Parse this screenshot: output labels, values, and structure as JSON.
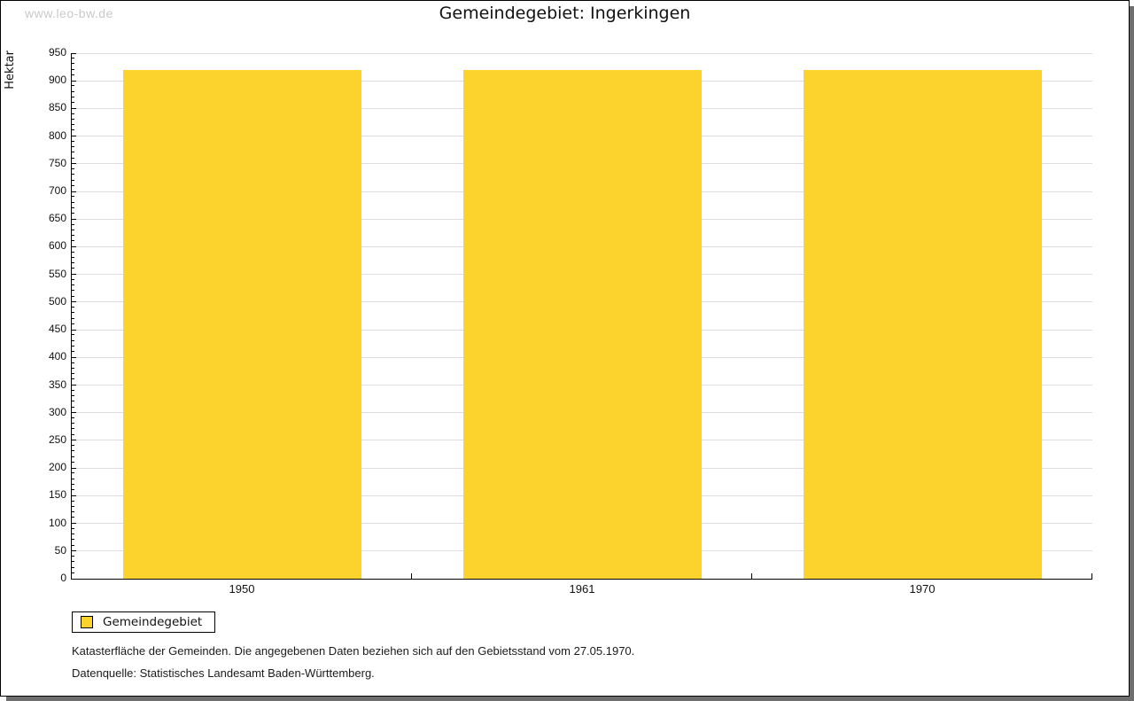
{
  "page": {
    "watermark": "www.leo-bw.de",
    "title": "Gemeindegebiet: Ingerkingen"
  },
  "chart_data": {
    "type": "bar",
    "title": "Gemeindegebiet: Ingerkingen",
    "ylabel": "Hektar",
    "xlabel": "",
    "categories": [
      "1950",
      "1961",
      "1970"
    ],
    "series": [
      {
        "name": "Gemeindegebiet",
        "color": "#FCD32D",
        "values": [
          920,
          920,
          920
        ]
      }
    ],
    "ylim": [
      0,
      950
    ],
    "ytick_step": 50,
    "minor_tick_step": 10,
    "grid": true,
    "legend_position": "bottom-left"
  },
  "legend": {
    "items": [
      {
        "label": "Gemeindegebiet",
        "color": "#FCD32D"
      }
    ]
  },
  "footnotes": {
    "line1": "Katasterfläche der Gemeinden. Die angegebenen Daten beziehen sich auf den Gebietsstand vom 27.05.1970.",
    "line2": "Datenquelle: Statistisches Landesamt Baden-Württemberg."
  },
  "colors": {
    "bar": "#FCD32D",
    "grid": "#DDDDDD",
    "axis": "#000000",
    "watermark": "#C9C9C9",
    "shadow": "#6E6E6E"
  }
}
